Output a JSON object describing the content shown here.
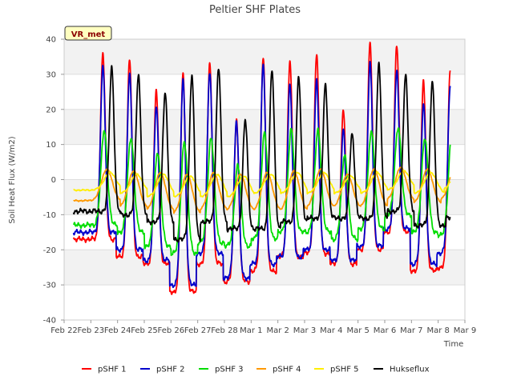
{
  "chart_data": {
    "type": "line",
    "title": "Peltier SHF Plates",
    "xlabel": "Time",
    "ylabel": "Soil Heat Flux (W/m2)",
    "ylim": [
      -40,
      40
    ],
    "yticks": [
      -40,
      -30,
      -20,
      -10,
      0,
      10,
      20,
      30,
      40
    ],
    "xlim": [
      0,
      15
    ],
    "xticks": [
      0,
      1,
      2,
      3,
      4,
      5,
      6,
      7,
      8,
      9,
      10,
      11,
      12,
      13,
      14,
      15
    ],
    "xtick_labels": [
      "Feb 22",
      "Feb 23",
      "Feb 24",
      "Feb 25",
      "Feb 26",
      "Feb 27",
      "Feb 28",
      "Mar 1",
      "Mar 2",
      "Mar 3",
      "Mar 4",
      "Mar 5",
      "Mar 6",
      "Mar 7",
      "Mar 8",
      "Mar 9"
    ],
    "site_label": "VR_met",
    "legend_position": "bottom",
    "grid": true,
    "x_start_day": 0.35,
    "x_end_day": 14.45,
    "series": [
      {
        "name": "pSHF 1",
        "color": "#ff0000",
        "daily_peaks": [
          36,
          34,
          25,
          30,
          33,
          17,
          35,
          34,
          36,
          20,
          39,
          38,
          28,
          31
        ],
        "daily_troughs": [
          -17,
          -22,
          -24,
          -32,
          -24,
          -29,
          -26,
          -22,
          -21,
          -24,
          -20,
          -15,
          -26,
          -25
        ]
      },
      {
        "name": "pSHF 2",
        "color": "#0000cc",
        "daily_peaks": [
          32,
          30,
          21,
          29,
          31,
          17,
          33,
          27,
          28,
          14,
          33,
          31,
          22,
          27
        ],
        "daily_troughs": [
          -15,
          -20,
          -23,
          -30,
          -21,
          -28,
          -24,
          -22,
          -20,
          -23,
          -19,
          -14,
          -24,
          -21
        ]
      },
      {
        "name": "pSHF 3",
        "color": "#00dd00",
        "daily_peaks": [
          14,
          12,
          8,
          11,
          12,
          4,
          13,
          14,
          14,
          7,
          14,
          15,
          12,
          12
        ],
        "daily_troughs": [
          -13,
          -15,
          -19,
          -21,
          -18,
          -19,
          -17,
          -15,
          -15,
          -17,
          -14,
          -10,
          -15,
          -16
        ]
      },
      {
        "name": "pSHF 4",
        "color": "#ff9900",
        "daily_peaks": [
          3,
          2.5,
          2,
          1.5,
          2,
          1.5,
          2,
          2.5,
          3,
          1.5,
          3,
          3.5,
          3,
          3
        ],
        "daily_troughs": [
          -6,
          -8,
          -9,
          -10,
          -9,
          -9,
          -9,
          -9,
          -8,
          -8,
          -8,
          -6,
          -7,
          -6
        ]
      },
      {
        "name": "pSHF 5",
        "color": "#ffee00",
        "daily_peaks": [
          2,
          1.5,
          1.5,
          1,
          1.5,
          1,
          1.5,
          2,
          2,
          1,
          2,
          2.5,
          2,
          2
        ],
        "daily_troughs": [
          -3,
          -4,
          -5,
          -5,
          -5,
          -5,
          -4,
          -4,
          -4,
          -4,
          -4,
          -3,
          -4,
          -3
        ]
      },
      {
        "name": "Hukseflux",
        "color": "#000000",
        "daily_peaks": [
          32,
          30,
          25,
          30,
          32,
          17,
          31,
          29,
          27,
          13,
          33,
          30,
          28,
          27
        ],
        "daily_troughs": [
          -9,
          -10,
          -12,
          -17,
          -12,
          -14,
          -14,
          -12,
          -11,
          -11,
          -11,
          -9,
          -13,
          -11
        ]
      }
    ]
  }
}
